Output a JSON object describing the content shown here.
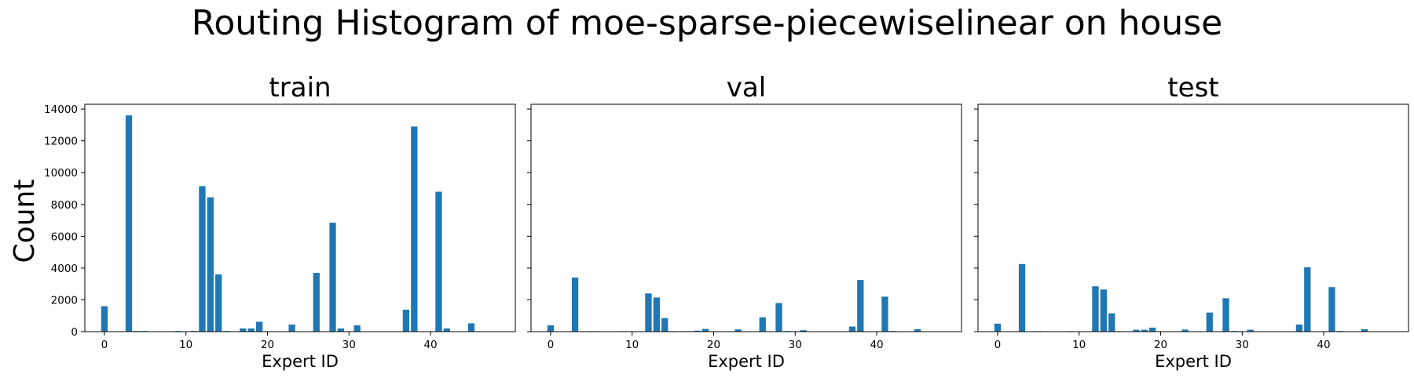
{
  "chart_data": {
    "type": "bar",
    "title": "Routing Histogram of moe-sparse-piecewiselinear on house",
    "ylabel": "Count",
    "ylim": [
      0,
      14300
    ],
    "xlim": [
      -2.4,
      50.4
    ],
    "yticks": [
      0,
      2000,
      4000,
      6000,
      8000,
      10000,
      12000,
      14000
    ],
    "xticks": [
      0,
      10,
      20,
      30,
      40
    ],
    "color": "#1f77b4",
    "panels": [
      {
        "title": "train",
        "xlabel": "Expert ID",
        "bars": [
          {
            "x": 0,
            "y": 1600
          },
          {
            "x": 3,
            "y": 13600
          },
          {
            "x": 4,
            "y": 40
          },
          {
            "x": 5,
            "y": 40
          },
          {
            "x": 9,
            "y": 40
          },
          {
            "x": 11,
            "y": 40
          },
          {
            "x": 12,
            "y": 9150
          },
          {
            "x": 13,
            "y": 8450
          },
          {
            "x": 14,
            "y": 3600
          },
          {
            "x": 15,
            "y": 40
          },
          {
            "x": 17,
            "y": 200
          },
          {
            "x": 18,
            "y": 200
          },
          {
            "x": 19,
            "y": 620
          },
          {
            "x": 23,
            "y": 450
          },
          {
            "x": 26,
            "y": 3700
          },
          {
            "x": 28,
            "y": 6850
          },
          {
            "x": 29,
            "y": 200
          },
          {
            "x": 31,
            "y": 400
          },
          {
            "x": 37,
            "y": 1380
          },
          {
            "x": 38,
            "y": 12900
          },
          {
            "x": 41,
            "y": 8800
          },
          {
            "x": 42,
            "y": 200
          },
          {
            "x": 45,
            "y": 520
          }
        ]
      },
      {
        "title": "val",
        "xlabel": "Expert ID",
        "bars": [
          {
            "x": 0,
            "y": 400
          },
          {
            "x": 3,
            "y": 3400
          },
          {
            "x": 5,
            "y": 30
          },
          {
            "x": 9,
            "y": 30
          },
          {
            "x": 12,
            "y": 2400
          },
          {
            "x": 13,
            "y": 2150
          },
          {
            "x": 14,
            "y": 850
          },
          {
            "x": 15,
            "y": 30
          },
          {
            "x": 17,
            "y": 30
          },
          {
            "x": 18,
            "y": 60
          },
          {
            "x": 19,
            "y": 170
          },
          {
            "x": 23,
            "y": 140
          },
          {
            "x": 26,
            "y": 900
          },
          {
            "x": 28,
            "y": 1800
          },
          {
            "x": 29,
            "y": 40
          },
          {
            "x": 31,
            "y": 90
          },
          {
            "x": 37,
            "y": 320
          },
          {
            "x": 38,
            "y": 3250
          },
          {
            "x": 41,
            "y": 2200
          },
          {
            "x": 42,
            "y": 40
          },
          {
            "x": 45,
            "y": 150
          }
        ]
      },
      {
        "title": "test",
        "xlabel": "Expert ID",
        "bars": [
          {
            "x": 0,
            "y": 500
          },
          {
            "x": 3,
            "y": 4250
          },
          {
            "x": 5,
            "y": 30
          },
          {
            "x": 9,
            "y": 30
          },
          {
            "x": 12,
            "y": 2850
          },
          {
            "x": 13,
            "y": 2650
          },
          {
            "x": 14,
            "y": 1150
          },
          {
            "x": 15,
            "y": 30
          },
          {
            "x": 17,
            "y": 120
          },
          {
            "x": 18,
            "y": 120
          },
          {
            "x": 19,
            "y": 250
          },
          {
            "x": 23,
            "y": 130
          },
          {
            "x": 26,
            "y": 1200
          },
          {
            "x": 28,
            "y": 2100
          },
          {
            "x": 29,
            "y": 40
          },
          {
            "x": 31,
            "y": 120
          },
          {
            "x": 37,
            "y": 450
          },
          {
            "x": 38,
            "y": 4050
          },
          {
            "x": 41,
            "y": 2800
          },
          {
            "x": 42,
            "y": 40
          },
          {
            "x": 45,
            "y": 150
          }
        ]
      }
    ]
  }
}
